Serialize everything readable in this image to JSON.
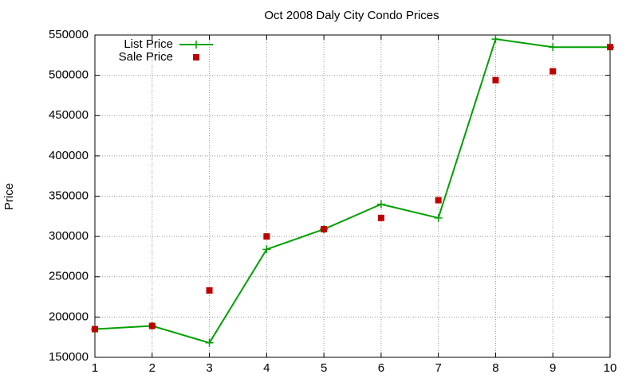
{
  "chart_data": {
    "type": "line",
    "title": "Oct 2008 Daly City Condo Prices",
    "y_label": "Price",
    "x": [
      1,
      2,
      3,
      4,
      5,
      6,
      7,
      8,
      9,
      10
    ],
    "series": [
      {
        "name": "List Price",
        "color": "#00a000",
        "line": true,
        "marker": "plus",
        "values": [
          185000,
          189000,
          168000,
          284000,
          309000,
          340000,
          323000,
          545000,
          535000,
          535000
        ]
      },
      {
        "name": "Sale Price",
        "color": "#c00000",
        "line": false,
        "marker": "square",
        "values": [
          185000,
          189000,
          233000,
          300000,
          309000,
          323000,
          345000,
          494000,
          505000,
          535000
        ]
      }
    ],
    "xlim": [
      1,
      10
    ],
    "xticks": [
      1,
      2,
      3,
      4,
      5,
      6,
      7,
      8,
      9,
      10
    ],
    "ylim": [
      150000,
      550000
    ],
    "yticks": [
      150000,
      200000,
      250000,
      300000,
      350000,
      400000,
      450000,
      500000,
      550000
    ],
    "grid": true,
    "legend": "top-left"
  }
}
